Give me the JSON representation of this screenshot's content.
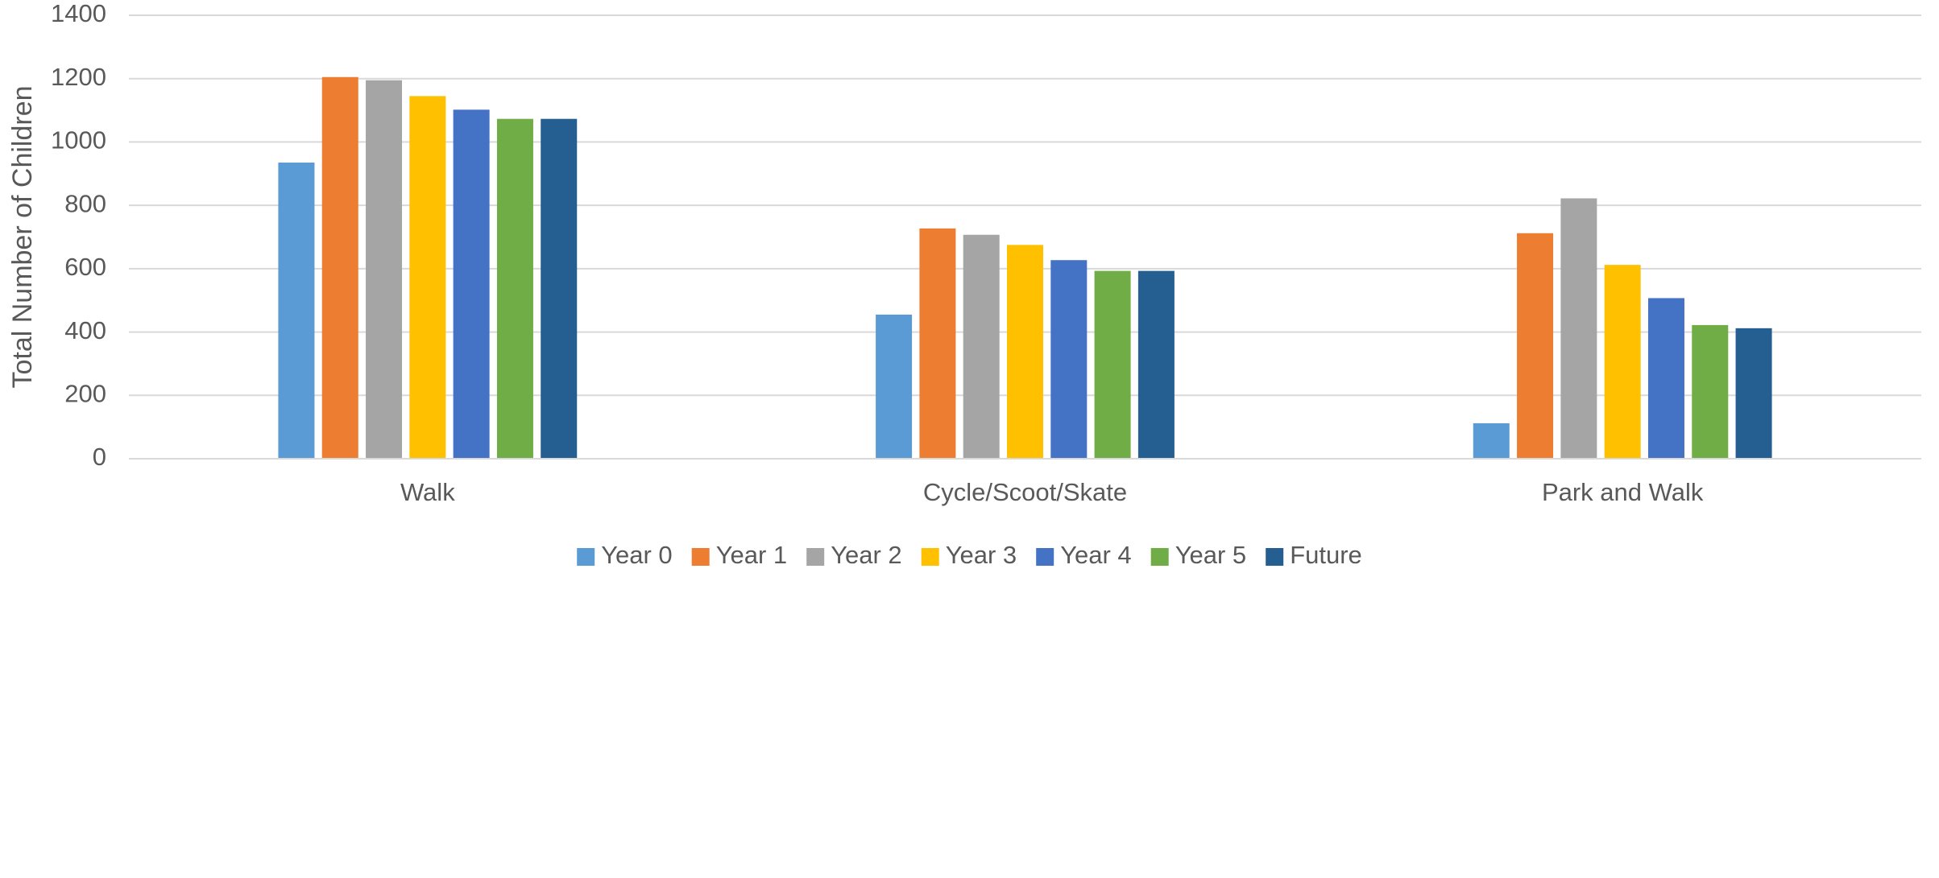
{
  "chart_data": {
    "type": "bar",
    "title": "",
    "xlabel": "",
    "ylabel": "Total Number of Children",
    "ylim": [
      0,
      1400
    ],
    "yticks": [
      0,
      200,
      400,
      600,
      800,
      1000,
      1200,
      1400
    ],
    "grid": true,
    "legend_position": "bottom",
    "categories": [
      "Walk",
      "Cycle/Scoot/Skate",
      "Park and Walk"
    ],
    "series": [
      {
        "name": "Year 0",
        "color": "#5B9BD5",
        "values": [
          935,
          455,
          112
        ]
      },
      {
        "name": "Year 1",
        "color": "#ED7D31",
        "values": [
          1205,
          727,
          712
        ]
      },
      {
        "name": "Year 2",
        "color": "#A5A5A5",
        "values": [
          1195,
          707,
          822
        ]
      },
      {
        "name": "Year 3",
        "color": "#FFC000",
        "values": [
          1145,
          675,
          612
        ]
      },
      {
        "name": "Year 4",
        "color": "#4472C4",
        "values": [
          1102,
          627,
          507
        ]
      },
      {
        "name": "Year 5",
        "color": "#70AD47",
        "values": [
          1073,
          593,
          422
        ]
      },
      {
        "name": "Future",
        "color": "#255E91",
        "values": [
          1073,
          593,
          412
        ]
      }
    ]
  }
}
